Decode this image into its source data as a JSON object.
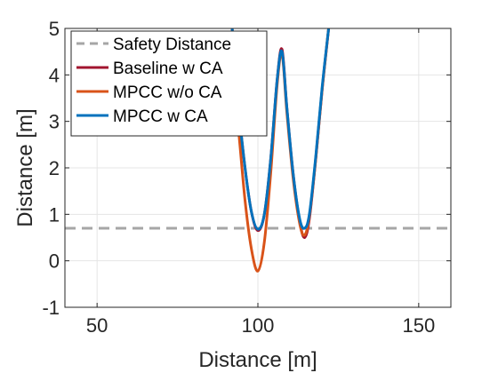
{
  "chart_data": {
    "type": "line",
    "title": "",
    "xlabel": "Distance [m]",
    "ylabel": "Distance [m]",
    "xlim": [
      40,
      160
    ],
    "ylim": [
      -1,
      5
    ],
    "xticks": [
      50,
      100,
      150
    ],
    "yticks": [
      -1,
      0,
      1,
      2,
      3,
      4,
      5
    ],
    "grid": true,
    "legend_position": "top-left",
    "safety_distance": {
      "name": "Safety Distance",
      "y": 0.7,
      "color": "#a6a6a6",
      "style": "dashed"
    },
    "series": [
      {
        "name": "Baseline w CA",
        "color": "#a2142f",
        "x": [
          92,
          94,
          96,
          98,
          100,
          102,
          104,
          106,
          107.5,
          109,
          111,
          113,
          114.5,
          116,
          118,
          120,
          122
        ],
        "y": [
          5,
          3.3,
          2.0,
          1.05,
          0.65,
          1.0,
          2.2,
          3.9,
          4.55,
          3.3,
          1.85,
          0.85,
          0.5,
          0.9,
          2.2,
          3.7,
          5
        ]
      },
      {
        "name": "MPCC w/o CA",
        "color": "#d95319",
        "x": [
          92,
          94,
          96,
          98,
          100,
          102,
          104,
          106,
          107.5,
          109,
          111,
          113,
          114.5,
          116,
          118,
          120,
          122
        ],
        "y": [
          4.1,
          2.8,
          1.3,
          0.25,
          -0.22,
          0.4,
          1.9,
          3.8,
          4.45,
          3.2,
          1.75,
          0.8,
          0.55,
          0.95,
          2.2,
          3.7,
          5
        ]
      },
      {
        "name": "MPCC w CA",
        "color": "#0072bd",
        "x": [
          92,
          94,
          96,
          98,
          100,
          102,
          104,
          106,
          107.5,
          109,
          111,
          113,
          114.5,
          116,
          118,
          120,
          122
        ],
        "y": [
          5,
          3.3,
          2.0,
          1.05,
          0.68,
          1.0,
          2.2,
          3.9,
          4.5,
          3.3,
          1.85,
          0.9,
          0.7,
          1.0,
          2.25,
          3.75,
          5
        ]
      }
    ]
  }
}
